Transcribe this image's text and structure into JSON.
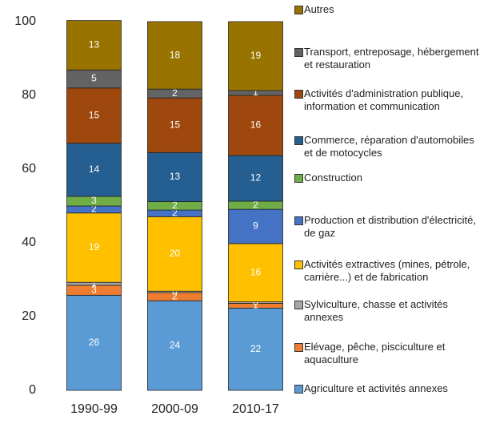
{
  "chart_data": {
    "type": "stacked_bar",
    "categories": [
      "1990-99",
      "2000-09",
      "2010-17"
    ],
    "ylim": [
      0,
      100
    ],
    "yticks": [
      0,
      20,
      40,
      60,
      80,
      100
    ],
    "series": [
      {
        "name": "Agriculture et activités annexes",
        "color": "#5b9bd5",
        "values": [
          25.8,
          24.3,
          22.3
        ],
        "value_labels": [
          "26",
          "24",
          "22"
        ]
      },
      {
        "name": "Elévage, pêche, pisciculture et aquaculture",
        "color": "#ed7d31",
        "values": [
          2.7,
          2.2,
          1.3
        ],
        "value_labels": [
          "3",
          "2",
          "1"
        ]
      },
      {
        "name": "Sylviculture, chasse et activités annexes",
        "color": "#a5a5a5",
        "values": [
          0.8,
          0.4,
          0.4
        ],
        "value_labels": [
          "1",
          "0",
          "0"
        ]
      },
      {
        "name": "Activités extractives (mines, pétrole, carrière...) et de fabrication",
        "color": "#ffc000",
        "values": [
          18.8,
          20.2,
          15.8
        ],
        "value_labels": [
          "19",
          "20",
          "16"
        ]
      },
      {
        "name": "Production et distribution d'électricité, de gaz",
        "color": "#4472c4",
        "values": [
          1.9,
          1.8,
          9.3
        ],
        "value_labels": [
          "2",
          "2",
          "9"
        ]
      },
      {
        "name": "Construction",
        "color": "#70ad47",
        "values": [
          2.6,
          2.3,
          2.2
        ],
        "value_labels": [
          "3",
          "2",
          "2"
        ]
      },
      {
        "name": "Commerce, réparation d'automobiles et de motocycles",
        "color": "#255e91",
        "values": [
          14.4,
          13.3,
          12.4
        ],
        "value_labels": [
          "14",
          "13",
          "12"
        ]
      },
      {
        "name": "Activités d'administration publique, information et communication",
        "color": "#9e480e",
        "values": [
          15.0,
          14.8,
          16.3
        ],
        "value_labels": [
          "15",
          "15",
          "16"
        ]
      },
      {
        "name": "Transport, entreposage, hébergement et restauration",
        "color": "#636363",
        "values": [
          4.9,
          2.4,
          1.3
        ],
        "value_labels": [
          "5",
          "2",
          "1"
        ]
      },
      {
        "name": "Autres",
        "color": "#997300",
        "values": [
          13.4,
          18.3,
          18.7
        ],
        "value_labels": [
          "13",
          "18",
          "19"
        ]
      }
    ]
  }
}
